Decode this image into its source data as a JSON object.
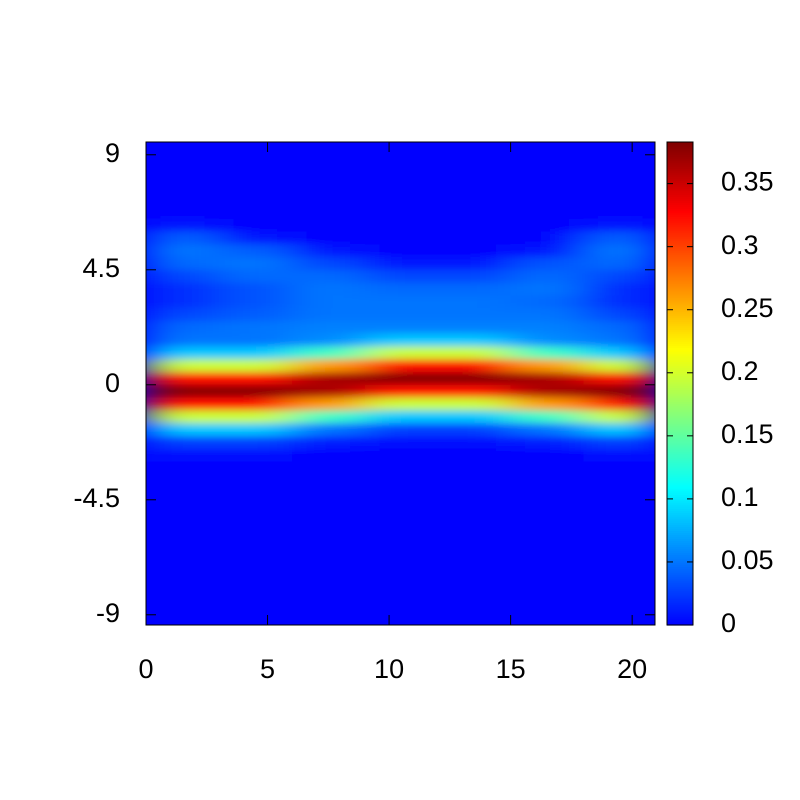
{
  "chart_data": {
    "type": "heatmap",
    "colormap": "jet",
    "x": [
      1.5,
      4.5,
      7.5,
      10.5,
      13.5,
      16.5,
      19.5
    ],
    "y": [
      9.25,
      8.75,
      8.25,
      7.75,
      7.25,
      6.75,
      6.25,
      5.75,
      5.25,
      4.75,
      4.25,
      3.75,
      3.25,
      2.75,
      2.25,
      1.75,
      1.25,
      0.75,
      0.25,
      -0.25,
      -0.75,
      -1.25,
      -1.75,
      -2.25,
      -2.75,
      -3.25,
      -3.75,
      -4.25,
      -4.75,
      -5.25,
      -5.75,
      -6.25,
      -6.75,
      -7.25,
      -7.75,
      -8.25,
      -8.75,
      -9.25
    ],
    "z": [
      [
        0,
        0,
        0,
        0,
        0,
        0,
        0
      ],
      [
        0,
        0,
        0,
        0,
        0,
        0,
        0
      ],
      [
        0,
        0,
        0,
        0,
        0,
        0,
        0
      ],
      [
        0,
        0,
        0,
        0,
        0,
        0,
        0
      ],
      [
        0,
        0,
        0,
        0,
        0,
        0,
        0
      ],
      [
        0,
        0,
        0,
        0,
        0,
        0,
        0
      ],
      [
        0.01,
        0,
        0,
        0,
        0,
        0,
        0.01
      ],
      [
        0.04,
        0.01,
        0,
        0,
        0,
        0,
        0.04
      ],
      [
        0.05,
        0.04,
        0.01,
        0,
        0,
        0.01,
        0.05
      ],
      [
        0.045,
        0.05,
        0.03,
        0.01,
        0.01,
        0.035,
        0.045
      ],
      [
        0.03,
        0.045,
        0.045,
        0.03,
        0.03,
        0.045,
        0.03
      ],
      [
        0.02,
        0.035,
        0.05,
        0.045,
        0.045,
        0.05,
        0.02
      ],
      [
        0.02,
        0.035,
        0.05,
        0.05,
        0.05,
        0.045,
        0.02
      ],
      [
        0.03,
        0.04,
        0.05,
        0.05,
        0.05,
        0.05,
        0.03
      ],
      [
        0.045,
        0.05,
        0.055,
        0.055,
        0.055,
        0.055,
        0.045
      ],
      [
        0.05,
        0.05,
        0.06,
        0.086,
        0.086,
        0.06,
        0.05
      ],
      [
        0.086,
        0.086,
        0.135,
        0.196,
        0.196,
        0.135,
        0.086
      ],
      [
        0.196,
        0.196,
        0.262,
        0.323,
        0.323,
        0.262,
        0.196
      ],
      [
        0.323,
        0.323,
        0.365,
        0.38,
        0.38,
        0.365,
        0.323
      ],
      [
        0.38,
        0.38,
        0.365,
        0.323,
        0.323,
        0.365,
        0.38
      ],
      [
        0.323,
        0.323,
        0.262,
        0.196,
        0.196,
        0.262,
        0.323
      ],
      [
        0.196,
        0.196,
        0.135,
        0.086,
        0.086,
        0.135,
        0.196
      ],
      [
        0.086,
        0.086,
        0.05,
        0.027,
        0.027,
        0.05,
        0.086
      ],
      [
        0.027,
        0.027,
        0.013,
        0.006,
        0.006,
        0.013,
        0.027
      ],
      [
        0.006,
        0.006,
        0.002,
        0,
        0,
        0.002,
        0.006
      ],
      [
        0.001,
        0.001,
        0,
        0,
        0,
        0,
        0.001
      ],
      [
        0,
        0,
        0,
        0,
        0,
        0,
        0
      ],
      [
        0,
        0,
        0,
        0,
        0,
        0,
        0
      ],
      [
        0,
        0,
        0,
        0,
        0,
        0,
        0
      ],
      [
        0,
        0,
        0,
        0,
        0,
        0,
        0
      ],
      [
        0,
        0,
        0,
        0,
        0,
        0,
        0
      ],
      [
        0,
        0,
        0,
        0,
        0,
        0,
        0
      ],
      [
        0,
        0,
        0,
        0,
        0,
        0,
        0
      ],
      [
        0,
        0,
        0,
        0,
        0,
        0,
        0
      ],
      [
        0,
        0,
        0,
        0,
        0,
        0,
        0
      ],
      [
        0,
        0,
        0,
        0,
        0,
        0,
        0
      ],
      [
        0,
        0,
        0,
        0,
        0,
        0,
        0
      ],
      [
        0,
        0,
        0,
        0,
        0,
        0,
        0
      ]
    ],
    "xlim": [
      0,
      20.94
    ],
    "ylim": [
      -9.4,
      9.5
    ],
    "xticks": [
      0,
      5,
      10,
      15,
      20
    ],
    "yticks": [
      -9,
      -4.5,
      0,
      4.5,
      9
    ],
    "zlim": [
      0,
      0.383
    ],
    "zticks": [
      0,
      0.05,
      0.1,
      0.15,
      0.2,
      0.25,
      0.3,
      0.35
    ]
  }
}
